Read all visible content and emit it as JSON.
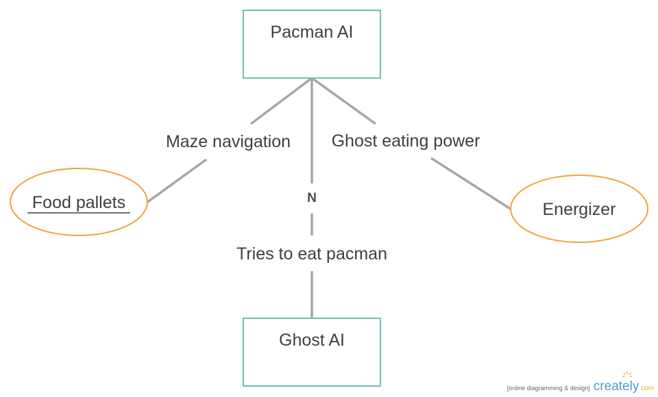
{
  "entities": {
    "pacman_ai": "Pacman AI",
    "ghost_ai": "Ghost AI"
  },
  "attributes": {
    "food_pallets": "Food pallets",
    "energizer": "Energizer"
  },
  "relationships": {
    "maze_navigation": "Maze navigation",
    "ghost_eating_power": "Ghost eating power",
    "tries_to_eat_pacman": "Tries to eat pacman"
  },
  "cardinality": {
    "ghost_link": "N"
  },
  "watermark": {
    "tagline": "[online diagramming & design]",
    "brand": "creately",
    "brand_ext": ".com"
  },
  "colors": {
    "entity_border": "#6cc49e",
    "attribute_border": "#f0a23b",
    "connector": "#a6a6a6",
    "text": "#3f3f3f"
  }
}
